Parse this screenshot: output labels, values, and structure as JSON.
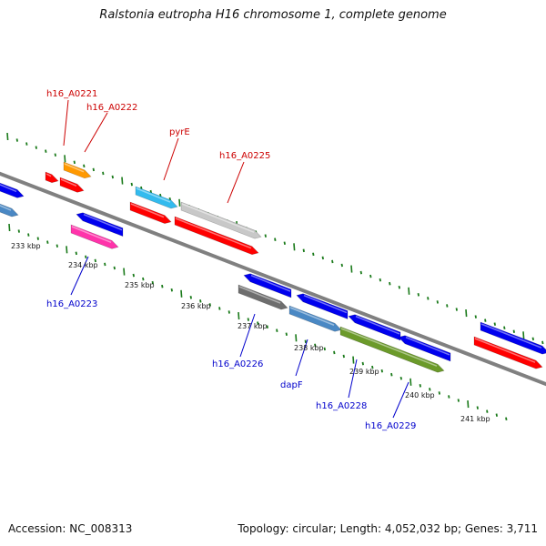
{
  "title": "Ralstonia eutropha H16 chromosome 1, complete genome",
  "accession": "Accession: NC_008313",
  "topology": "Topology: circular; Length: 4,052,032 bp; Genes: 3,711",
  "colors": {
    "backbone": "#808080",
    "tick": "#1a7a1a",
    "label_top": "#cc0000",
    "label_bottom": "#0000cc",
    "red": "#ff0000",
    "blue": "#0000ee",
    "orange": "#ff9900",
    "cyan": "#33bbee",
    "lightgray": "#c8c8c8",
    "magenta": "#ff33aa",
    "steelblue": "#4a88c4",
    "darkgray": "#6e6e6e",
    "olive": "#6b9a2a"
  },
  "scale_labels": [
    "233 kbp",
    "234 kbp",
    "235 kbp",
    "236 kbp",
    "237 kbp",
    "238 kbp",
    "239 kbp",
    "240 kbp",
    "241 kbp"
  ],
  "gene_labels_top": [
    "h16_A0221",
    "h16_A0222",
    "pyrE",
    "h16_A0225"
  ],
  "gene_labels_bottom": [
    "h16_A0223",
    "h16_A0226",
    "dapF",
    "h16_A0228",
    "h16_A0229"
  ]
}
